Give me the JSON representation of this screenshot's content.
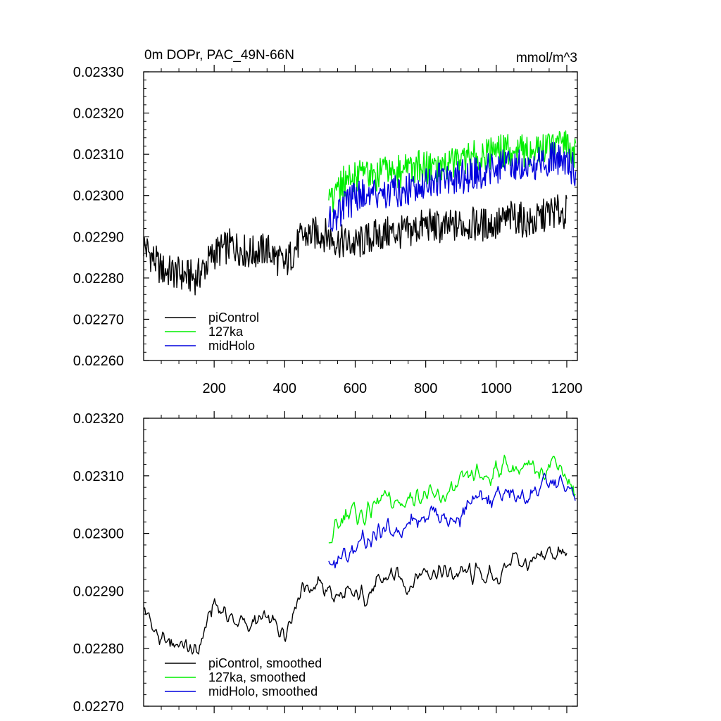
{
  "chart_data": [
    {
      "type": "line",
      "title": "0m DOPr, PAC_49N-66N",
      "units": "mmol/m^3",
      "xlabel": "",
      "ylabel": "",
      "xlim": [
        0,
        1230
      ],
      "ylim": [
        0.0226,
        0.0233
      ],
      "xticks": [
        200,
        400,
        600,
        800,
        1000,
        1200
      ],
      "yticks": [
        0.0226,
        0.0227,
        0.0228,
        0.0229,
        0.023,
        0.0231,
        0.0232,
        0.0233
      ],
      "ytick_labels": [
        "0.02260",
        "0.02270",
        "0.02280",
        "0.02290",
        "0.02300",
        "0.02310",
        "0.02320",
        "0.02330"
      ],
      "legend": [
        "piControl",
        "127ka",
        "midHolo"
      ],
      "legend_position": "bottom-left",
      "series": [
        {
          "name": "piControl",
          "color": "#000000",
          "x": [
            0,
            50,
            100,
            150,
            200,
            250,
            300,
            350,
            400,
            450,
            500,
            550,
            600,
            650,
            700,
            750,
            800,
            850,
            900,
            950,
            1000,
            1050,
            1100,
            1150,
            1200
          ],
          "y": [
            0.02288,
            0.02282,
            0.02281,
            0.0228,
            0.02286,
            0.02288,
            0.02286,
            0.02287,
            0.02283,
            0.0229,
            0.02291,
            0.02289,
            0.02288,
            0.0229,
            0.02291,
            0.02291,
            0.02293,
            0.02292,
            0.02293,
            0.02293,
            0.02293,
            0.02295,
            0.02293,
            0.02296,
            0.02296
          ]
        },
        {
          "name": "127ka",
          "color": "#00ee00",
          "x": [
            525,
            575,
            625,
            675,
            725,
            775,
            825,
            875,
            925,
            975,
            1025,
            1075,
            1125,
            1175,
            1225
          ],
          "y": [
            0.02298,
            0.02304,
            0.02305,
            0.02305,
            0.02306,
            0.02307,
            0.02307,
            0.02308,
            0.02309,
            0.0231,
            0.02311,
            0.02311,
            0.02311,
            0.02313,
            0.0231
          ]
        },
        {
          "name": "midHolo",
          "color": "#0000dd",
          "x": [
            525,
            575,
            625,
            675,
            725,
            775,
            825,
            875,
            925,
            975,
            1025,
            1075,
            1125,
            1175,
            1225
          ],
          "y": [
            0.02294,
            0.02298,
            0.023,
            0.02301,
            0.02301,
            0.02302,
            0.02304,
            0.02304,
            0.02305,
            0.02306,
            0.02307,
            0.02308,
            0.02308,
            0.02309,
            0.02306
          ]
        }
      ]
    },
    {
      "type": "line",
      "title": "",
      "xlabel": "",
      "ylabel": "",
      "xlim": [
        0,
        1230
      ],
      "ylim": [
        0.0227,
        0.0232
      ],
      "xticks": [
        200,
        400,
        600,
        800,
        1000,
        1200
      ],
      "yticks": [
        0.0227,
        0.0228,
        0.0229,
        0.023,
        0.0231,
        0.0232
      ],
      "ytick_labels": [
        "0.02270",
        "0.02280",
        "0.02290",
        "0.02300",
        "0.02310",
        "0.02320"
      ],
      "legend": [
        "piControl, smoothed",
        "127ka, smoothed",
        "midHolo, smoothed"
      ],
      "legend_position": "bottom-left",
      "series": [
        {
          "name": "piControl, smoothed",
          "color": "#000000",
          "x": [
            0,
            50,
            100,
            150,
            200,
            250,
            300,
            350,
            400,
            450,
            500,
            550,
            600,
            650,
            700,
            750,
            800,
            850,
            900,
            950,
            1000,
            1050,
            1100,
            1150,
            1200
          ],
          "y": [
            0.02287,
            0.02281,
            0.02281,
            0.02279,
            0.02288,
            0.02285,
            0.02284,
            0.02285,
            0.02283,
            0.02291,
            0.02291,
            0.02289,
            0.02289,
            0.0229,
            0.02293,
            0.02291,
            0.02294,
            0.02293,
            0.02293,
            0.02293,
            0.02292,
            0.02296,
            0.02294,
            0.02297,
            0.02296
          ]
        },
        {
          "name": "127ka, smoothed",
          "color": "#00ee00",
          "x": [
            525,
            575,
            625,
            675,
            725,
            775,
            825,
            875,
            925,
            975,
            1025,
            1075,
            1125,
            1175,
            1225
          ],
          "y": [
            0.02298,
            0.02304,
            0.02303,
            0.02306,
            0.02305,
            0.02307,
            0.02306,
            0.02307,
            0.0231,
            0.0231,
            0.02312,
            0.02311,
            0.02311,
            0.02313,
            0.02306
          ]
        },
        {
          "name": "midHolo, smoothed",
          "color": "#0000dd",
          "x": [
            525,
            575,
            625,
            675,
            725,
            775,
            825,
            875,
            925,
            975,
            1025,
            1075,
            1125,
            1175,
            1225
          ],
          "y": [
            0.02295,
            0.02296,
            0.02299,
            0.023,
            0.02301,
            0.02303,
            0.02304,
            0.02302,
            0.02305,
            0.02306,
            0.02307,
            0.02306,
            0.02308,
            0.02309,
            0.02306
          ]
        }
      ]
    }
  ]
}
